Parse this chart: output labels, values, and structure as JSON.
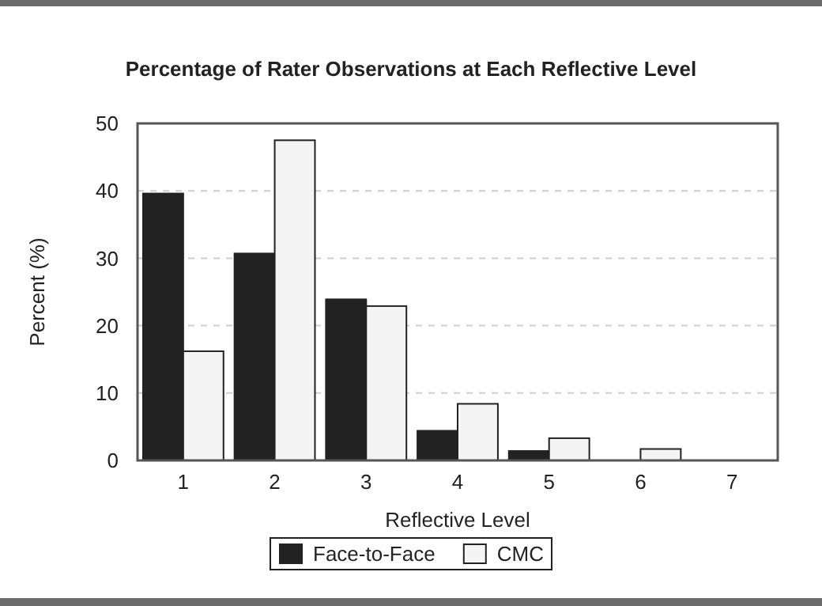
{
  "chart_data": {
    "type": "bar",
    "title": "Percentage of Rater Observations at Each Reflective Level",
    "xlabel": "Reflective Level",
    "ylabel": "Percent (%)",
    "categories": [
      "1",
      "2",
      "3",
      "4",
      "5",
      "6",
      "7"
    ],
    "series": [
      {
        "name": "Face-to-Face",
        "color": "#222222",
        "values": [
          39.6,
          30.7,
          23.9,
          4.4,
          1.4,
          0,
          0
        ]
      },
      {
        "name": "CMC",
        "color": "#f4f4f4",
        "values": [
          16.2,
          47.5,
          22.9,
          8.4,
          3.3,
          1.7,
          0
        ]
      }
    ],
    "ylim": [
      0,
      50
    ],
    "yticks": [
      0,
      10,
      20,
      30,
      40,
      50
    ],
    "grid": "y",
    "legend": "bottom"
  }
}
